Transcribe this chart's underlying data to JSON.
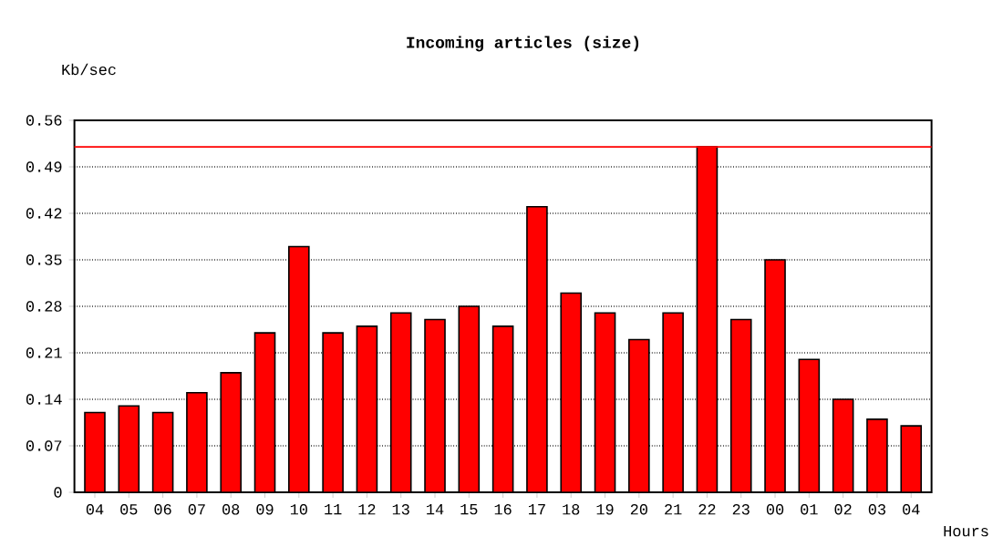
{
  "chart_data": {
    "type": "bar",
    "title": "Incoming articles (size)",
    "xlabel": "Hours",
    "ylabel": "Kb/sec",
    "categories": [
      "04",
      "05",
      "06",
      "07",
      "08",
      "09",
      "10",
      "11",
      "12",
      "13",
      "14",
      "15",
      "16",
      "17",
      "18",
      "19",
      "20",
      "21",
      "22",
      "23",
      "00",
      "01",
      "02",
      "03",
      "04"
    ],
    "values": [
      0.12,
      0.13,
      0.12,
      0.15,
      0.18,
      0.24,
      0.37,
      0.24,
      0.25,
      0.27,
      0.26,
      0.28,
      0.25,
      0.43,
      0.3,
      0.27,
      0.23,
      0.27,
      0.52,
      0.26,
      0.35,
      0.2,
      0.14,
      0.11,
      0.1
    ],
    "color": "#ff0000",
    "ylim": [
      0,
      0.56
    ],
    "yticks": [
      0,
      0.07,
      0.14,
      0.21,
      0.28,
      0.35,
      0.42,
      0.49,
      0.56
    ],
    "grid": "y",
    "ref_lines": [
      {
        "axis": "y",
        "value": 0.52,
        "color": "#ff0000",
        "line_style": "solid"
      }
    ]
  }
}
